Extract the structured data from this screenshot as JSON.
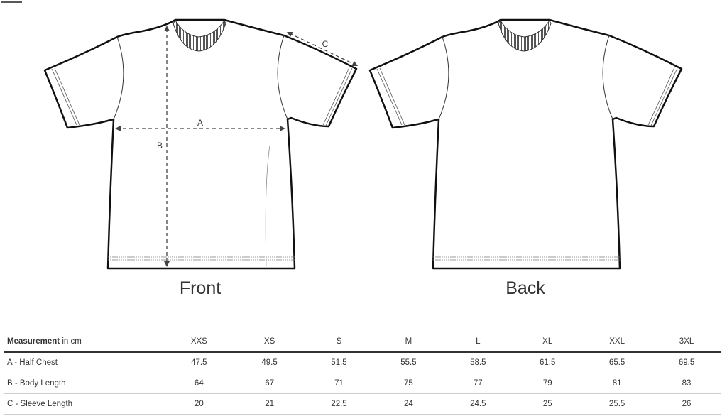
{
  "views": {
    "front": "Front",
    "back": "Back"
  },
  "dimension_labels": {
    "a": "A",
    "b": "B",
    "c": "C"
  },
  "table": {
    "header_bold": "Measurement",
    "header_unit": " in cm",
    "sizes": [
      "XXS",
      "XS",
      "S",
      "M",
      "L",
      "XL",
      "XXL",
      "3XL"
    ],
    "rows": [
      {
        "label": "A - Half Chest",
        "values": [
          "47.5",
          "49.5",
          "51.5",
          "55.5",
          "58.5",
          "61.5",
          "65.5",
          "69.5"
        ]
      },
      {
        "label": "B - Body Length",
        "values": [
          "64",
          "67",
          "71",
          "75",
          "77",
          "79",
          "81",
          "83"
        ]
      },
      {
        "label": "C - Sleeve Length",
        "values": [
          "20",
          "21",
          "22.5",
          "24",
          "24.5",
          "25",
          "25.5",
          "26"
        ]
      }
    ]
  }
}
